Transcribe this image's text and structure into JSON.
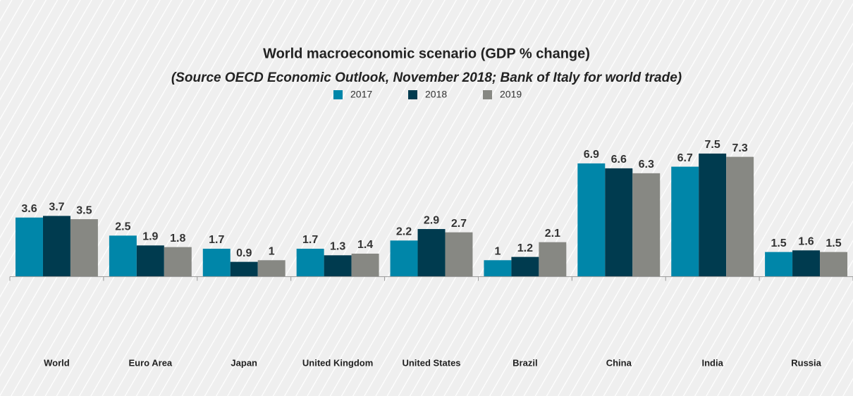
{
  "chart_data": {
    "type": "bar",
    "title": "World macroeconomic scenario (GDP % change)",
    "subtitle": "(Source OECD Economic Outlook, November 2018; Bank of Italy for world trade)",
    "categories": [
      "World",
      "Euro Area",
      "Japan",
      "United Kingdom",
      "United States",
      "Brazil",
      "China",
      "India",
      "Russia"
    ],
    "series": [
      {
        "name": "2017",
        "color": "#0086a9",
        "values": [
          3.6,
          2.5,
          1.7,
          1.7,
          2.2,
          1,
          6.9,
          6.7,
          1.5
        ]
      },
      {
        "name": "2018",
        "color": "#003b4f",
        "values": [
          3.7,
          1.9,
          0.9,
          1.3,
          2.9,
          1.2,
          6.6,
          7.5,
          1.6
        ]
      },
      {
        "name": "2019",
        "color": "#878883",
        "values": [
          3.5,
          1.8,
          1,
          1.4,
          2.7,
          2.1,
          6.3,
          7.3,
          1.5
        ]
      }
    ],
    "ylim": [
      -5,
      9
    ],
    "legend": "top"
  }
}
